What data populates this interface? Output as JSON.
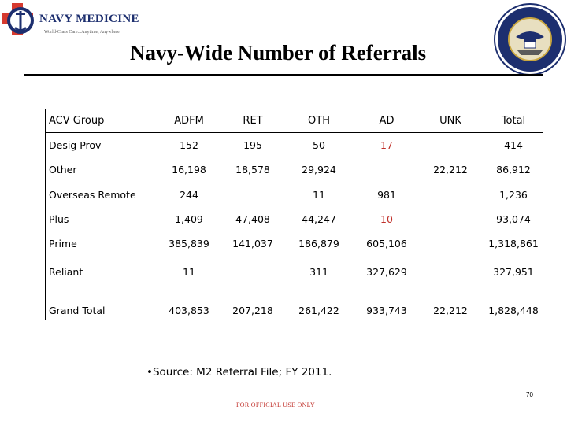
{
  "header": {
    "logo_name": "NAVY MEDICINE",
    "logo_tagline": "World-Class Care...Anytime, Anywhere",
    "title": "Navy-Wide Number of Referrals"
  },
  "table": {
    "columns": [
      "ACV Group",
      "ADFM",
      "RET",
      "OTH",
      "AD",
      "UNK",
      "Total"
    ],
    "rows": [
      {
        "label": "Desig Prov",
        "ADFM": "152",
        "RET": "195",
        "OTH": "50",
        "AD": "17",
        "UNK": "",
        "Total": "414"
      },
      {
        "label": "Other",
        "ADFM": "16,198",
        "RET": "18,578",
        "OTH": "29,924",
        "AD": "",
        "UNK": "22,212",
        "Total": "86,912"
      },
      {
        "label": "Overseas Remote",
        "ADFM": "244",
        "RET": "",
        "OTH": "11",
        "AD": "981",
        "UNK": "",
        "Total": "1,236"
      },
      {
        "label": "Plus",
        "ADFM": "1,409",
        "RET": "47,408",
        "OTH": "44,247",
        "AD": "10",
        "UNK": "",
        "Total": "93,074"
      },
      {
        "label": "Prime",
        "ADFM": "385,839",
        "RET": "141,037",
        "OTH": "186,879",
        "AD": "605,106",
        "UNK": "",
        "Total": "1,318,861"
      },
      {
        "label": "Reliant",
        "ADFM": "11",
        "RET": "",
        "OTH": "311",
        "AD": "327,629",
        "UNK": "",
        "Total": "327,951"
      },
      {
        "label": "Grand Total",
        "ADFM": "403,853",
        "RET": "207,218",
        "OTH": "261,422",
        "AD": "933,743",
        "UNK": "22,212",
        "Total": "1,828,448"
      }
    ],
    "highlight_color": "#c0302a",
    "highlighted_cells": [
      "Desig Prov.AD",
      "Plus.AD"
    ]
  },
  "footer": {
    "source": "•Source: M2 Referral File; FY 2011.",
    "classification": "FOR OFFICIAL USE ONLY",
    "page_number": "70"
  }
}
